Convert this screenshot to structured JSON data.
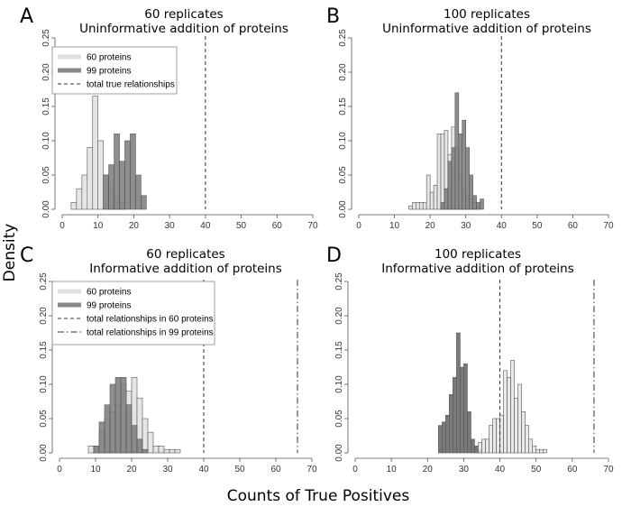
{
  "figure": {
    "ylabel": "Density",
    "xlabel": "Counts of True Positives"
  },
  "chart_data": [
    {
      "panel": "A",
      "type": "bar",
      "title_line1": "60 replicates",
      "title_line2": "Uninformative addition of proteins",
      "xlim": [
        0,
        70
      ],
      "ylim": [
        0,
        0.25
      ],
      "xticks": [
        0,
        10,
        20,
        30,
        40,
        50,
        60,
        70
      ],
      "yticks": [
        0.0,
        0.05,
        0.1,
        0.15,
        0.2,
        0.25
      ],
      "ytick_labels": [
        "0.00",
        "0.05",
        "0.10",
        "0.15",
        "0.20",
        "0.25"
      ],
      "bin_width": 1.5,
      "legend_position": "top-left",
      "legend": [
        {
          "label": "60 proteins",
          "style": "thick-light"
        },
        {
          "label": "99 proteins",
          "style": "thick-dark"
        },
        {
          "label": "total true relationships",
          "style": "dashed"
        }
      ],
      "series": [
        {
          "name": "60 proteins",
          "color": "#e6e6e6",
          "bins": [
            [
              2.5,
              0.01
            ],
            [
              4,
              0.03
            ],
            [
              5.5,
              0.05
            ],
            [
              7,
              0.09
            ],
            [
              8.5,
              0.165
            ],
            [
              10,
              0.1
            ],
            [
              11.5,
              0.05
            ],
            [
              13,
              0.03
            ],
            [
              14.5,
              0.02
            ],
            [
              16,
              0.01
            ]
          ]
        },
        {
          "name": "99 proteins",
          "color": "#7a7a7a",
          "bins": [
            [
              11.5,
              0.05
            ],
            [
              13,
              0.065
            ],
            [
              14.5,
              0.11
            ],
            [
              16,
              0.07
            ],
            [
              17.5,
              0.1
            ],
            [
              19,
              0.11
            ],
            [
              20.5,
              0.05
            ],
            [
              22,
              0.02
            ]
          ]
        }
      ],
      "vlines": [
        {
          "x": 40,
          "style": "dashed"
        }
      ]
    },
    {
      "panel": "B",
      "type": "bar",
      "title_line1": "100 replicates",
      "title_line2": "Uninformative addition of proteins",
      "xlim": [
        0,
        70
      ],
      "ylim": [
        0,
        0.25
      ],
      "xticks": [
        0,
        10,
        20,
        30,
        40,
        50,
        60,
        70
      ],
      "yticks": [
        0.0,
        0.05,
        0.1,
        0.15,
        0.2,
        0.25
      ],
      "ytick_labels": [
        "0.00",
        "0.05",
        "0.10",
        "0.15",
        "0.20",
        "0.25"
      ],
      "bin_width": 1,
      "legend": [],
      "series": [
        {
          "name": "60 proteins",
          "color": "#e6e6e6",
          "bins": [
            [
              14,
              0.005
            ],
            [
              15,
              0.01
            ],
            [
              16,
              0.01
            ],
            [
              17,
              0.01
            ],
            [
              18,
              0.01
            ],
            [
              19,
              0.05
            ],
            [
              20,
              0.025
            ],
            [
              21,
              0.035
            ],
            [
              22,
              0.11
            ],
            [
              23,
              0.11
            ],
            [
              24,
              0.115
            ],
            [
              25,
              0.08
            ],
            [
              26,
              0.12
            ],
            [
              27,
              0.09
            ],
            [
              28,
              0.05
            ],
            [
              29,
              0.03
            ],
            [
              30,
              0.02
            ],
            [
              31,
              0.015
            ],
            [
              32,
              0.01
            ],
            [
              33,
              0.005
            ]
          ]
        },
        {
          "name": "99 proteins",
          "color": "#7a7a7a",
          "bins": [
            [
              23,
              0.01
            ],
            [
              24,
              0.03
            ],
            [
              25,
              0.07
            ],
            [
              26,
              0.09
            ],
            [
              27,
              0.17
            ],
            [
              28,
              0.11
            ],
            [
              29,
              0.13
            ],
            [
              30,
              0.09
            ],
            [
              31,
              0.05
            ],
            [
              32,
              0.02
            ],
            [
              33,
              0.01
            ],
            [
              34,
              0.015
            ]
          ]
        }
      ],
      "vlines": [
        {
          "x": 40,
          "style": "dashed"
        }
      ]
    },
    {
      "panel": "C",
      "type": "bar",
      "title_line1": "60 replicates",
      "title_line2": "Informative addition of proteins",
      "xlim": [
        0,
        70
      ],
      "ylim": [
        0,
        0.25
      ],
      "xticks": [
        0,
        10,
        20,
        30,
        40,
        50,
        60,
        70
      ],
      "yticks": [
        0.0,
        0.05,
        0.1,
        0.15,
        0.2,
        0.25
      ],
      "ytick_labels": [
        "0.00",
        "0.05",
        "0.10",
        "0.15",
        "0.20",
        "0.25"
      ],
      "bin_width": 1.5,
      "legend_position": "top-left",
      "legend": [
        {
          "label": "60 proteins",
          "style": "thick-light"
        },
        {
          "label": "99 proteins",
          "style": "thick-dark"
        },
        {
          "label": "total relationships in 60 proteins",
          "style": "dashed"
        },
        {
          "label": "total relationships in 99 proteins",
          "style": "dotdash"
        }
      ],
      "series": [
        {
          "name": "60 proteins",
          "color": "#e6e6e6",
          "bins": [
            [
              8,
              0.01
            ],
            [
              9.5,
              0.01
            ],
            [
              11,
              0.03
            ],
            [
              12.5,
              0.05
            ],
            [
              14,
              0.06
            ],
            [
              15.5,
              0.07
            ],
            [
              17,
              0.1
            ],
            [
              18.5,
              0.09
            ],
            [
              20,
              0.11
            ],
            [
              21.5,
              0.08
            ],
            [
              23,
              0.05
            ],
            [
              24.5,
              0.03
            ],
            [
              26,
              0.01
            ],
            [
              27.5,
              0.01
            ],
            [
              29,
              0.005
            ],
            [
              30.5,
              0.005
            ],
            [
              32,
              0.005
            ]
          ]
        },
        {
          "name": "99 proteins",
          "color": "#7a7a7a",
          "bins": [
            [
              9.5,
              0.01
            ],
            [
              11,
              0.045
            ],
            [
              12.5,
              0.07
            ],
            [
              14,
              0.1
            ],
            [
              15.5,
              0.11
            ],
            [
              17,
              0.11
            ],
            [
              18.5,
              0.07
            ],
            [
              20,
              0.04
            ],
            [
              21.5,
              0.02
            ],
            [
              23,
              0.005
            ]
          ]
        }
      ],
      "vlines": [
        {
          "x": 40,
          "style": "dashed"
        },
        {
          "x": 66,
          "style": "dotdash"
        }
      ]
    },
    {
      "panel": "D",
      "type": "bar",
      "title_line1": "100 replicates",
      "title_line2": "Informative addition of proteins",
      "xlim": [
        0,
        70
      ],
      "ylim": [
        0,
        0.25
      ],
      "xticks": [
        0,
        10,
        20,
        30,
        40,
        50,
        60,
        70
      ],
      "yticks": [
        0.0,
        0.05,
        0.1,
        0.15,
        0.2,
        0.25
      ],
      "ytick_labels": [
        "0.00",
        "0.05",
        "0.10",
        "0.15",
        "0.20",
        "0.25"
      ],
      "bin_width": 1,
      "legend": [],
      "series": [
        {
          "name": "99 proteins",
          "color": "#7a7a7a",
          "bins": [
            [
              23,
              0.04
            ],
            [
              24,
              0.045
            ],
            [
              25,
              0.055
            ],
            [
              26,
              0.085
            ],
            [
              27,
              0.11
            ],
            [
              28,
              0.175
            ],
            [
              29,
              0.125
            ],
            [
              30,
              0.13
            ],
            [
              31,
              0.06
            ],
            [
              32,
              0.02
            ],
            [
              33,
              0.01
            ],
            [
              34,
              0.005
            ]
          ]
        },
        {
          "name": "60 proteins",
          "color": "#e6e6e6",
          "bins": [
            [
              34,
              0.015
            ],
            [
              35,
              0.02
            ],
            [
              36,
              0.02
            ],
            [
              37,
              0.04
            ],
            [
              38,
              0.05
            ],
            [
              39,
              0.05
            ],
            [
              40,
              0.055
            ],
            [
              41,
              0.12
            ],
            [
              42,
              0.11
            ],
            [
              43,
              0.135
            ],
            [
              44,
              0.08
            ],
            [
              45,
              0.1
            ],
            [
              46,
              0.06
            ],
            [
              47,
              0.04
            ],
            [
              48,
              0.02
            ],
            [
              49,
              0.01
            ],
            [
              50,
              0.005
            ],
            [
              51,
              0.005
            ],
            [
              52,
              0.005
            ]
          ]
        }
      ],
      "vlines": [
        {
          "x": 40,
          "style": "dashed"
        },
        {
          "x": 66,
          "style": "dotdash"
        }
      ]
    }
  ]
}
